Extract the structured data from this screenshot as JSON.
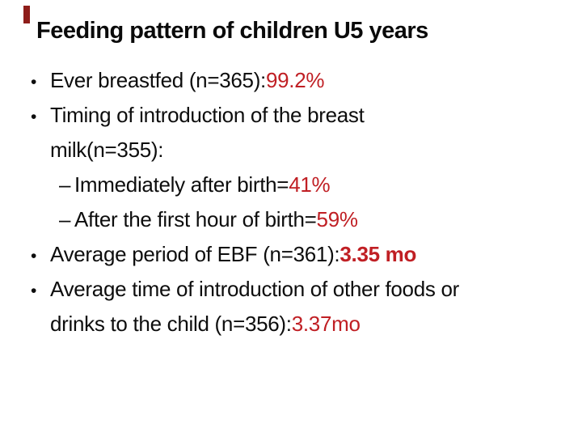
{
  "slide": {
    "title": "Feeding pattern of children U5 years",
    "accent_color": "#8e1d1a",
    "red_color": "#c01f24",
    "text_color": "#0d0d0d",
    "bullet_char": "•",
    "sub_bullet_char": "–",
    "bullets": [
      {
        "level": 1,
        "lines": [
          [
            {
              "text": "Ever breastfed (n=365): ",
              "style": "normal"
            },
            {
              "text": "99.2%",
              "style": "red"
            }
          ]
        ]
      },
      {
        "level": 1,
        "lines": [
          [
            {
              "text": "Timing of introduction of the breast",
              "style": "normal"
            }
          ],
          [
            {
              "text": "milk(n=355):",
              "style": "normal"
            }
          ]
        ]
      },
      {
        "level": 2,
        "lines": [
          [
            {
              "text": "Immediately after birth= ",
              "style": "normal"
            },
            {
              "text": "41%",
              "style": "red"
            }
          ]
        ]
      },
      {
        "level": 2,
        "lines": [
          [
            {
              "text": "After the first hour of birth=",
              "style": "normal"
            },
            {
              "text": "59%",
              "style": "red"
            }
          ]
        ]
      },
      {
        "level": 1,
        "lines": [
          [
            {
              "text": "Average period of EBF (n=361): ",
              "style": "normal"
            },
            {
              "text": "3.35 mo",
              "style": "red-bold"
            }
          ]
        ]
      },
      {
        "level": 1,
        "lines": [
          [
            {
              "text": "Average time of introduction of other foods or",
              "style": "normal"
            }
          ],
          [
            {
              "text": "drinks to the child (n=356): ",
              "style": "normal"
            },
            {
              "text": "3.37mo",
              "style": "red"
            }
          ]
        ]
      }
    ]
  }
}
